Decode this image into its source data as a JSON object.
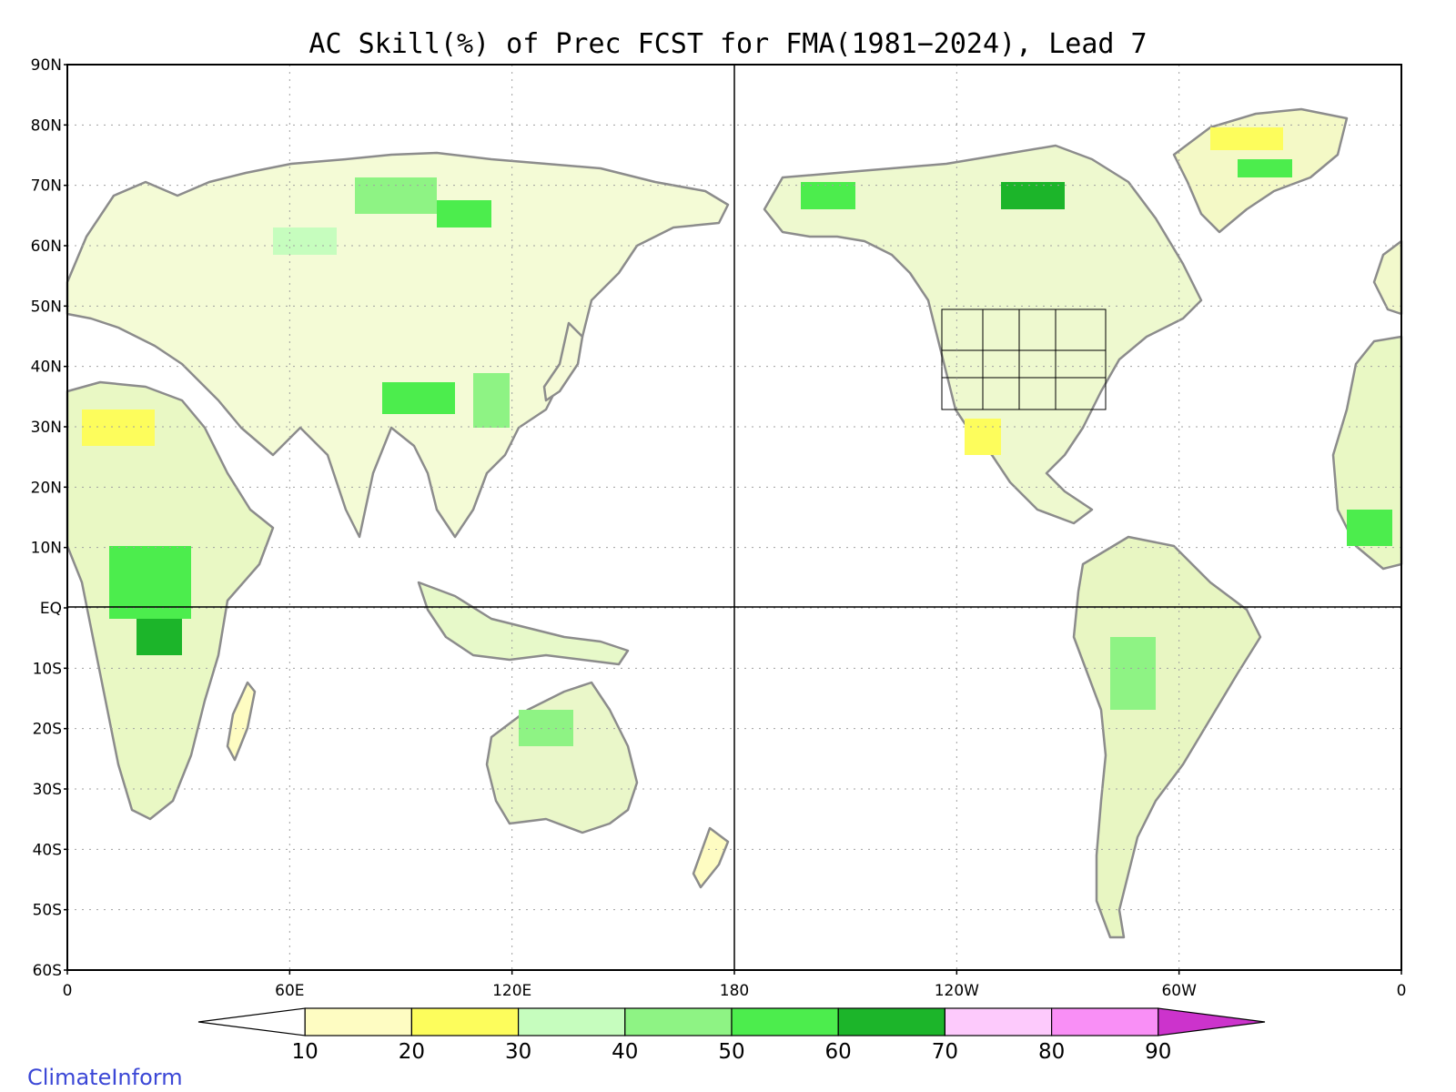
{
  "title": "AC Skill(%) of Prec FCST for FMA(1981−2024), Lead 7",
  "lat_labels": [
    "90N",
    "80N",
    "70N",
    "60N",
    "50N",
    "40N",
    "30N",
    "20N",
    "10N",
    "EQ",
    "10S",
    "20S",
    "30S",
    "40S",
    "50S",
    "60S"
  ],
  "lon_labels": [
    "0",
    "60E",
    "120E",
    "180",
    "120W",
    "60W",
    "0"
  ],
  "colorbar": {
    "values": [
      "10",
      "20",
      "30",
      "40",
      "50",
      "60",
      "70",
      "80",
      "90"
    ],
    "colors": [
      "#ffffff",
      "#fefcc2",
      "#fdfd5c",
      "#c6fdbe",
      "#8ef384",
      "#4ced4d",
      "#1cb52a",
      "#fdcafc",
      "#f98ff6",
      "#cc33cc"
    ]
  },
  "colors": {
    "land_outline": "#8c8c8c",
    "lake_outline": "#000000",
    "frame": "#000000",
    "grid": "#a0a0a0"
  },
  "credit": "ClimateInform"
}
